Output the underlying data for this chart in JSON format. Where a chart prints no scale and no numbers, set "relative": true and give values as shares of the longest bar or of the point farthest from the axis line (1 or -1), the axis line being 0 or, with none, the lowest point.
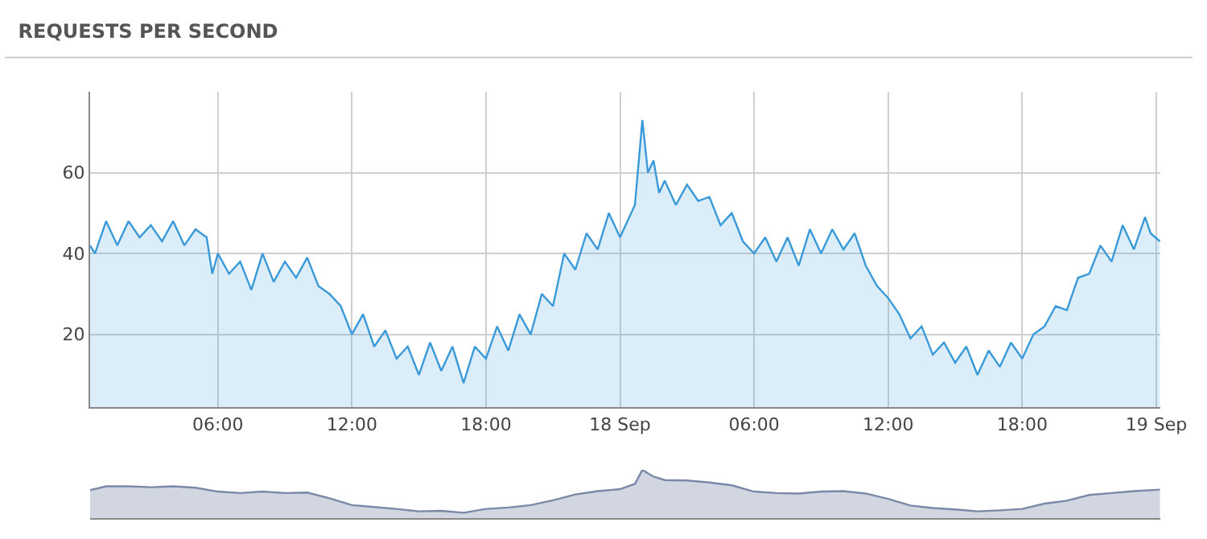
{
  "chart_data": [
    {
      "type": "area",
      "title": "REQUESTS PER SECOND",
      "x": [
        "--09-17T00:17",
        "--09-17T00:30",
        "--09-17T01:00",
        "--09-17T01:30",
        "--09-17T02:00",
        "--09-17T02:30",
        "--09-17T03:00",
        "--09-17T03:30",
        "--09-17T04:00",
        "--09-17T04:30",
        "--09-17T05:00",
        "--09-17T05:30",
        "--09-17T05:45",
        "--09-17T06:00",
        "--09-17T06:30",
        "--09-17T07:00",
        "--09-17T07:30",
        "--09-17T08:00",
        "--09-17T08:30",
        "--09-17T09:00",
        "--09-17T09:30",
        "--09-17T10:00",
        "--09-17T10:30",
        "--09-17T11:00",
        "--09-17T11:30",
        "--09-17T12:00",
        "--09-17T12:30",
        "--09-17T13:00",
        "--09-17T13:30",
        "--09-17T14:00",
        "--09-17T14:30",
        "--09-17T15:00",
        "--09-17T15:30",
        "--09-17T16:00",
        "--09-17T16:30",
        "--09-17T17:00",
        "--09-17T17:30",
        "--09-17T18:00",
        "--09-17T18:30",
        "--09-17T19:00",
        "--09-17T19:30",
        "--09-17T20:00",
        "--09-17T20:30",
        "--09-17T21:00",
        "--09-17T21:30",
        "--09-17T22:00",
        "--09-17T22:30",
        "--09-17T23:00",
        "--09-17T23:30",
        "--09-18T00:00",
        "--09-18T00:20",
        "--09-18T00:40",
        "--09-18T01:00",
        "--09-18T01:15",
        "--09-18T01:30",
        "--09-18T01:45",
        "--09-18T02:00",
        "--09-18T02:30",
        "--09-18T03:00",
        "--09-18T03:30",
        "--09-18T04:00",
        "--09-18T04:30",
        "--09-18T05:00",
        "--09-18T05:30",
        "--09-18T06:00",
        "--09-18T06:30",
        "--09-18T07:00",
        "--09-18T07:30",
        "--09-18T08:00",
        "--09-18T08:30",
        "--09-18T09:00",
        "--09-18T09:30",
        "--09-18T10:00",
        "--09-18T10:30",
        "--09-18T11:00",
        "--09-18T11:30",
        "--09-18T12:00",
        "--09-18T12:30",
        "--09-18T13:00",
        "--09-18T13:30",
        "--09-18T14:00",
        "--09-18T14:30",
        "--09-18T15:00",
        "--09-18T15:30",
        "--09-18T16:00",
        "--09-18T16:30",
        "--09-18T17:00",
        "--09-18T17:30",
        "--09-18T18:00",
        "--09-18T18:30",
        "--09-18T19:00",
        "--09-18T19:30",
        "--09-18T20:00",
        "--09-18T20:30",
        "--09-18T21:00",
        "--09-18T21:30",
        "--09-18T22:00",
        "--09-18T22:30",
        "--09-18T23:00",
        "--09-18T23:30",
        "--09-18T23:45",
        "--09-19T00:10"
      ],
      "series": [
        {
          "color": "#3a9ad9",
          "values": [
            42,
            40,
            48,
            42,
            48,
            44,
            47,
            43,
            48,
            42,
            46,
            44,
            35,
            40,
            35,
            38,
            31,
            40,
            33,
            38,
            34,
            39,
            32,
            30,
            27,
            20,
            25,
            17,
            21,
            14,
            17,
            10,
            18,
            11,
            17,
            8,
            17,
            14,
            22,
            16,
            25,
            20,
            30,
            27,
            40,
            36,
            45,
            41,
            50,
            44,
            48,
            52,
            73,
            60,
            63,
            55,
            58,
            52,
            57,
            53,
            54,
            47,
            50,
            43,
            40,
            44,
            38,
            44,
            37,
            46,
            40,
            46,
            41,
            45,
            37,
            32,
            29,
            25,
            19,
            22,
            15,
            18,
            13,
            17,
            10,
            16,
            12,
            18,
            14,
            20,
            22,
            27,
            26,
            34,
            35,
            42,
            38,
            47,
            41,
            49,
            45,
            43
          ]
        }
      ],
      "xlim": [
        "--09-17T00:17",
        "--09-19T00:11"
      ],
      "xticks": [
        {
          "value": "--09-17T06:00",
          "label": "06:00"
        },
        {
          "value": "--09-17T12:00",
          "label": "12:00"
        },
        {
          "value": "--09-17T18:00",
          "label": "18:00"
        },
        {
          "value": "--09-18T00:00",
          "label": "18 Sep"
        },
        {
          "value": "--09-18T06:00",
          "label": "06:00"
        },
        {
          "value": "--09-18T12:00",
          "label": "12:00"
        },
        {
          "value": "--09-18T18:00",
          "label": "18:00"
        },
        {
          "value": "--09-19T00:00",
          "label": "19 Sep"
        }
      ],
      "ylim": [
        2,
        80
      ],
      "yticks": [
        20,
        40,
        60
      ],
      "grid": true
    },
    {
      "type": "area",
      "relative": true,
      "xlim": [
        "--09-17T00:17",
        "--09-19T00:11"
      ],
      "x": [
        "--09-17T00:17",
        "--09-17T01:00",
        "--09-17T02:00",
        "--09-17T03:00",
        "--09-17T04:00",
        "--09-17T05:00",
        "--09-17T06:00",
        "--09-17T07:00",
        "--09-17T08:00",
        "--09-17T09:00",
        "--09-17T10:00",
        "--09-17T11:00",
        "--09-17T12:00",
        "--09-17T13:00",
        "--09-17T14:00",
        "--09-17T15:00",
        "--09-17T16:00",
        "--09-17T17:00",
        "--09-17T18:00",
        "--09-17T19:00",
        "--09-17T20:00",
        "--09-17T21:00",
        "--09-17T22:00",
        "--09-17T23:00",
        "--09-18T00:00",
        "--09-18T00:40",
        "--09-18T01:00",
        "--09-18T01:30",
        "--09-18T02:00",
        "--09-18T03:00",
        "--09-18T04:00",
        "--09-18T05:00",
        "--09-18T06:00",
        "--09-18T07:00",
        "--09-18T08:00",
        "--09-18T09:00",
        "--09-18T10:00",
        "--09-18T11:00",
        "--09-18T12:00",
        "--09-18T13:00",
        "--09-18T14:00",
        "--09-18T15:00",
        "--09-18T16:00",
        "--09-18T17:00",
        "--09-18T18:00",
        "--09-18T19:00",
        "--09-18T20:00",
        "--09-18T21:00",
        "--09-18T22:00",
        "--09-18T23:00",
        "--09-19T00:10"
      ],
      "series": [
        {
          "color": "#7a89a8",
          "values": [
            0.58,
            0.66,
            0.66,
            0.64,
            0.66,
            0.63,
            0.55,
            0.52,
            0.55,
            0.52,
            0.53,
            0.41,
            0.27,
            0.23,
            0.19,
            0.14,
            0.15,
            0.11,
            0.19,
            0.22,
            0.27,
            0.37,
            0.49,
            0.56,
            0.6,
            0.71,
            1,
            0.86,
            0.79,
            0.78,
            0.74,
            0.68,
            0.55,
            0.52,
            0.51,
            0.55,
            0.56,
            0.51,
            0.4,
            0.26,
            0.21,
            0.18,
            0.14,
            0.16,
            0.19,
            0.3,
            0.36,
            0.48,
            0.52,
            0.56,
            0.59
          ]
        }
      ]
    }
  ]
}
